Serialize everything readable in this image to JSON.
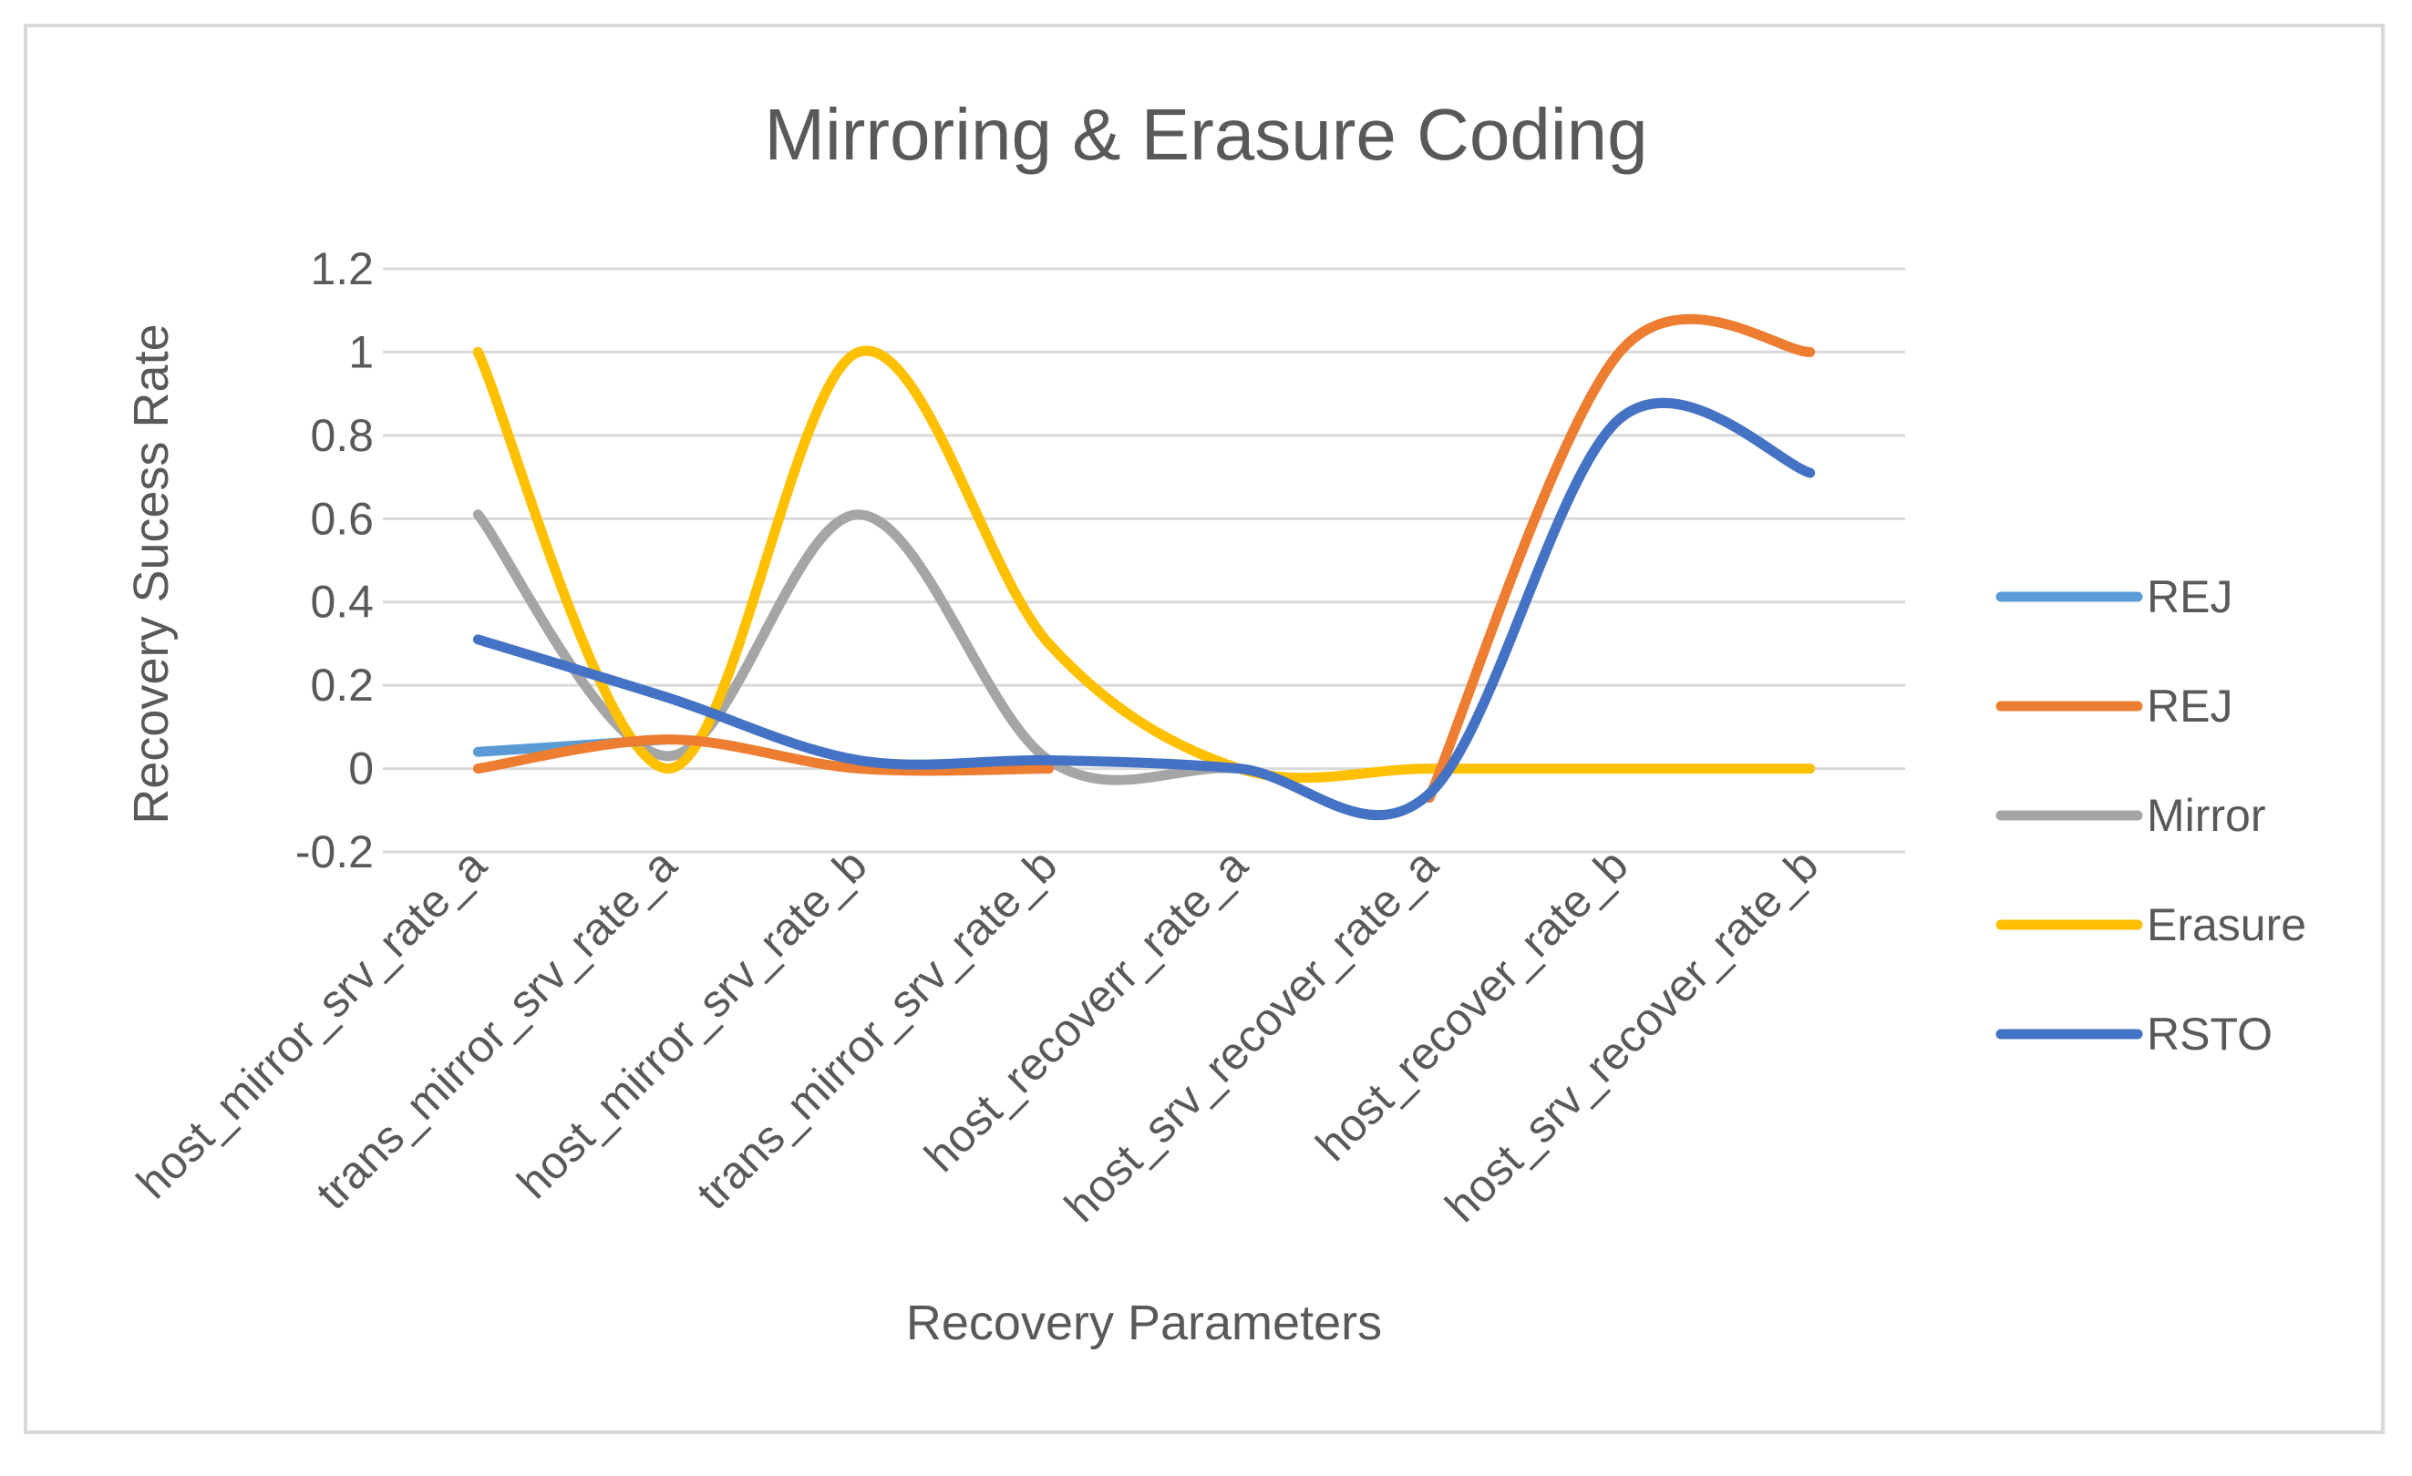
{
  "chart_data": {
    "type": "line",
    "title": "Mirroring & Erasure Coding",
    "xlabel": "Recovery Parameters",
    "ylabel": "Recovery Sucess Rate",
    "ylim": [
      -0.2,
      1.2
    ],
    "ytick_step": 0.2,
    "yticks": [
      "-0.2",
      "0",
      "0.2",
      "0.4",
      "0.6",
      "0.8",
      "1",
      "1.2"
    ],
    "grid": true,
    "legend_position": "right",
    "categories": [
      "host_mirror_srv_rate_a",
      "trans_mirror_srv_rate_a",
      "host_mirror_srv_rate_b",
      "trans_mirror_srv_rate_b",
      "host_recoverr_rate_a",
      "host_srv_recover_rate_a",
      "host_recover_rate_b",
      "host_srv_recover_rate_b"
    ],
    "series": [
      {
        "name": "REJ",
        "color": "#5b9bd5",
        "values": [
          0.04,
          0.07,
          null,
          null,
          null,
          null,
          null,
          null
        ]
      },
      {
        "name": "REJ",
        "color": "#ed7d31",
        "values": [
          0.0,
          0.07,
          0.0,
          0.0,
          null,
          -0.07,
          1.0,
          1.0
        ]
      },
      {
        "name": "Mirror",
        "color": "#a5a5a5",
        "values": [
          0.61,
          0.03,
          0.61,
          0.02,
          0.0,
          -0.06,
          0.84,
          0.71
        ]
      },
      {
        "name": "Erasure",
        "color": "#ffc000",
        "values": [
          1.0,
          0.0,
          1.0,
          0.3,
          0.0,
          0.0,
          0.0,
          0.0
        ]
      },
      {
        "name": "RSTO",
        "color": "#4472c4",
        "values": [
          0.31,
          0.17,
          0.02,
          0.02,
          0.0,
          -0.06,
          0.84,
          0.71
        ]
      }
    ]
  }
}
